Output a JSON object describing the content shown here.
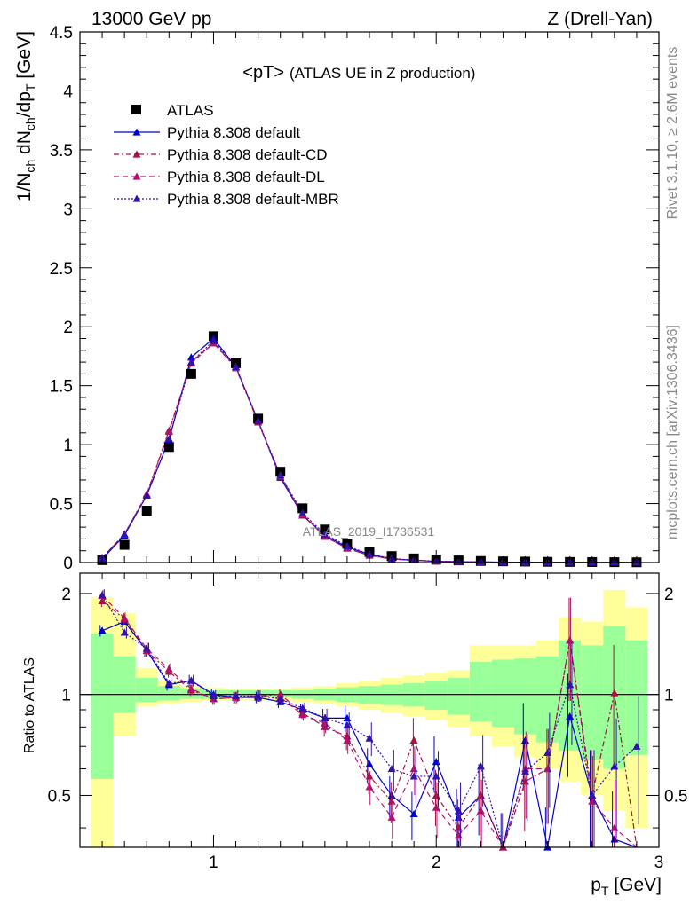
{
  "header": {
    "left": "13000 GeV pp",
    "right": "Z (Drell-Yan)"
  },
  "side_text": {
    "rivet": "Rivet 3.1.10, ≥ 2.6M events",
    "mcplots": "mcplots.cern.ch [arXiv:1306.3436]"
  },
  "chart_data": [
    {
      "type": "scatter",
      "title_main": "<pT>",
      "title_sub": "(ATLAS UE in Z production)",
      "watermark": "ATLAS_2019_I1736531",
      "ylabel": "1/N_ch dN_ch/dp_T [GeV]",
      "xlim": [
        0.4,
        3.0
      ],
      "ylim": [
        0,
        4.5
      ],
      "x_ticks": [],
      "y_ticks": [
        "0",
        "0.5",
        "1",
        "1.5",
        "2",
        "2.5",
        "3",
        "3.5",
        "4",
        "4.5"
      ],
      "x": [
        0.5,
        0.6,
        0.7,
        0.8,
        0.9,
        1.0,
        1.1,
        1.2,
        1.3,
        1.4,
        1.5,
        1.6,
        1.7,
        1.8,
        1.9,
        2.0,
        2.1,
        2.2,
        2.3,
        2.4,
        2.5,
        2.6,
        2.7,
        2.8,
        2.9
      ],
      "series": [
        {
          "name": "ATLAS",
          "color": "#000000",
          "marker": "square",
          "values": [
            0.02,
            0.15,
            0.44,
            0.98,
            1.6,
            1.92,
            1.69,
            1.22,
            0.77,
            0.46,
            0.28,
            0.16,
            0.09,
            0.055,
            0.035,
            0.025,
            0.018,
            0.013,
            0.01,
            0.008,
            0.006,
            0.005,
            0.004,
            0.003,
            0.002
          ]
        },
        {
          "name": "Pythia 8.308 default",
          "color": "#0000cc",
          "line": "solid",
          "values": [
            0.03,
            0.23,
            0.57,
            1.04,
            1.74,
            1.9,
            1.66,
            1.2,
            0.72,
            0.4,
            0.23,
            0.13,
            0.07,
            0.03,
            0.02,
            0.01,
            0.008,
            0.005,
            0.003,
            0.003,
            0.002,
            0.002,
            0.001,
            0.001,
            0.001
          ]
        },
        {
          "name": "Pythia 8.308 default-CD",
          "color": "#aa1144",
          "line": "dashdot",
          "values": [
            0.04,
            0.24,
            0.58,
            1.12,
            1.69,
            1.86,
            1.65,
            1.19,
            0.74,
            0.4,
            0.22,
            0.12,
            0.06,
            0.03,
            0.02,
            0.01,
            0.007,
            0.004,
            0.003,
            0.002,
            0.002,
            0.002,
            0.001,
            0.001,
            0.001
          ]
        },
        {
          "name": "Pythia 8.308 default-DL",
          "color": "#b01070",
          "line": "dashed",
          "values": [
            0.04,
            0.24,
            0.58,
            1.11,
            1.7,
            1.86,
            1.66,
            1.2,
            0.73,
            0.41,
            0.22,
            0.12,
            0.06,
            0.03,
            0.02,
            0.01,
            0.007,
            0.004,
            0.003,
            0.002,
            0.002,
            0.002,
            0.001,
            0.001,
            0.001
          ]
        },
        {
          "name": "Pythia 8.308 default-MBR",
          "color": "#3311aa",
          "line": "dotted",
          "values": [
            0.04,
            0.24,
            0.57,
            1.05,
            1.7,
            1.88,
            1.66,
            1.2,
            0.74,
            0.42,
            0.24,
            0.14,
            0.07,
            0.035,
            0.02,
            0.012,
            0.008,
            0.005,
            0.003,
            0.003,
            0.002,
            0.002,
            0.001,
            0.001,
            0.001
          ]
        }
      ]
    },
    {
      "type": "scatter",
      "ylabel": "Ratio to ATLAS",
      "xlabel": "p_T [GeV]",
      "xlim": [
        0.4,
        3.0
      ],
      "ylim": [
        0.35,
        2.3
      ],
      "x_ticks": [
        "1",
        "2",
        "3"
      ],
      "y_ticks": [
        "0.5",
        "1",
        "2"
      ],
      "x": [
        0.5,
        0.6,
        0.7,
        0.8,
        0.9,
        1.0,
        1.1,
        1.2,
        1.3,
        1.4,
        1.5,
        1.6,
        1.7,
        1.8,
        1.9,
        2.0,
        2.1,
        2.2,
        2.3,
        2.4,
        2.5,
        2.6,
        2.7,
        2.8,
        2.9
      ],
      "bands": {
        "bin_edges": [
          0.45,
          0.55,
          0.65,
          0.75,
          0.85,
          0.95,
          1.05,
          1.15,
          1.25,
          1.35,
          1.45,
          1.55,
          1.65,
          1.75,
          1.85,
          1.95,
          2.05,
          2.15,
          2.25,
          2.35,
          2.45,
          2.55,
          2.65,
          2.75,
          2.85,
          2.95
        ],
        "yellow_lo": [
          0.0,
          0.75,
          0.92,
          0.94,
          0.95,
          0.96,
          0.96,
          0.96,
          0.96,
          0.95,
          0.94,
          0.92,
          0.9,
          0.88,
          0.86,
          0.84,
          0.8,
          0.75,
          0.7,
          0.65,
          0.6,
          0.55,
          0.5,
          0.45,
          0.4
        ],
        "yellow_hi": [
          1.95,
          1.75,
          1.2,
          1.1,
          1.06,
          1.05,
          1.04,
          1.04,
          1.04,
          1.05,
          1.06,
          1.08,
          1.1,
          1.12,
          1.14,
          1.16,
          1.18,
          1.4,
          1.4,
          1.4,
          1.45,
          1.7,
          1.65,
          2.05,
          1.82
        ],
        "green_lo": [
          0.56,
          0.88,
          0.95,
          0.96,
          0.97,
          0.97,
          0.98,
          0.98,
          0.98,
          0.97,
          0.96,
          0.95,
          0.94,
          0.93,
          0.92,
          0.9,
          0.87,
          0.83,
          0.8,
          0.76,
          0.72,
          0.68,
          0.64,
          0.6,
          0.66
        ],
        "green_hi": [
          1.52,
          1.3,
          1.12,
          1.06,
          1.04,
          1.03,
          1.03,
          1.03,
          1.03,
          1.03,
          1.04,
          1.05,
          1.06,
          1.07,
          1.08,
          1.1,
          1.12,
          1.25,
          1.27,
          1.28,
          1.3,
          1.45,
          1.4,
          1.6,
          1.45
        ]
      },
      "series": [
        {
          "name": "Pythia 8.308 default",
          "color": "#0000cc",
          "line": "solid",
          "values": [
            1.55,
            1.65,
            1.35,
            1.07,
            1.1,
            1.0,
            0.98,
            0.98,
            0.95,
            0.9,
            0.85,
            0.85,
            0.62,
            0.5,
            0.44,
            0.63,
            0.43,
            0.5,
            0.35,
            0.73,
            0.35,
            0.86,
            0.5,
            0.37,
            0.3
          ]
        },
        {
          "name": "Pythia 8.308 default-CD",
          "color": "#aa1144",
          "line": "dashdot",
          "values": [
            1.9,
            1.68,
            1.35,
            1.17,
            1.03,
            0.97,
            0.98,
            0.99,
            1.0,
            0.88,
            0.8,
            0.75,
            0.57,
            0.48,
            0.73,
            0.5,
            0.4,
            0.5,
            0.35,
            0.55,
            0.6,
            1.45,
            0.5,
            1.01,
            0.3
          ]
        },
        {
          "name": "Pythia 8.308 default-DL",
          "color": "#b01070",
          "line": "dashed",
          "values": [
            1.97,
            1.69,
            1.37,
            1.19,
            1.04,
            0.97,
            0.98,
            0.99,
            0.98,
            0.87,
            0.82,
            0.73,
            0.53,
            0.43,
            0.6,
            0.46,
            0.38,
            0.45,
            0.33,
            0.6,
            0.6,
            1.45,
            0.48,
            0.4,
            0.3
          ]
        },
        {
          "name": "Pythia 8.308 default-MBR",
          "color": "#3311aa",
          "line": "dotted",
          "values": [
            1.98,
            1.53,
            1.37,
            1.08,
            1.1,
            0.99,
            0.99,
            0.99,
            0.97,
            0.91,
            0.85,
            0.81,
            0.74,
            0.6,
            0.57,
            0.57,
            0.45,
            0.61,
            0.34,
            0.59,
            0.67,
            1.07,
            0.5,
            0.61,
            0.7
          ]
        }
      ],
      "reference_line": 1
    }
  ]
}
